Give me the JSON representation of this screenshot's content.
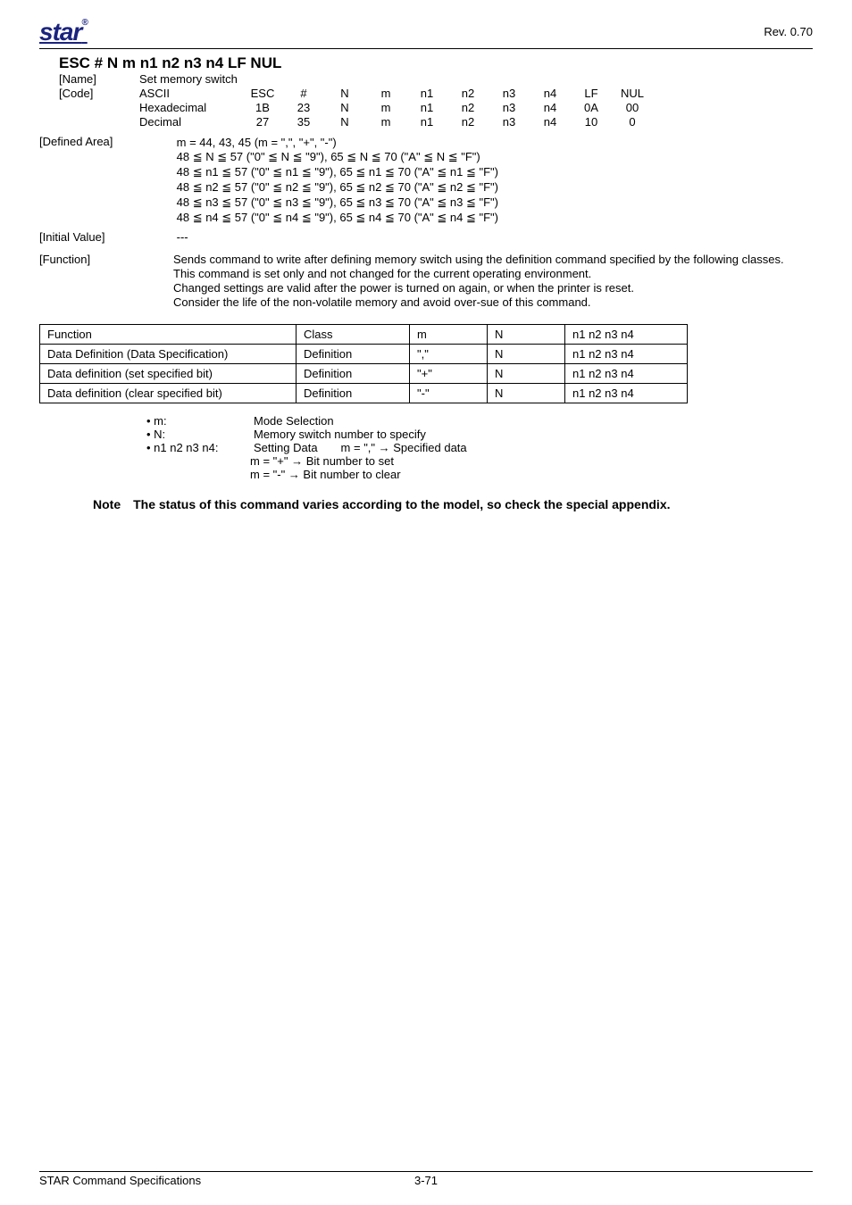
{
  "header": {
    "logo_text": "star",
    "rev": "Rev. 0.70"
  },
  "title": "ESC # N m n1 n2 n3 n4 LF NUL",
  "meta": {
    "name_label": "[Name]",
    "name_value": "Set memory switch",
    "code_label": "[Code]",
    "rows": [
      {
        "label": "ASCII",
        "cells": [
          "ESC",
          "#",
          "N",
          "m",
          "n1",
          "n2",
          "n3",
          "n4",
          "LF",
          "NUL"
        ]
      },
      {
        "label": "Hexadecimal",
        "cells": [
          "1B",
          "23",
          "N",
          "m",
          "n1",
          "n2",
          "n3",
          "n4",
          "0A",
          "00"
        ]
      },
      {
        "label": "Decimal",
        "cells": [
          "27",
          "35",
          "N",
          "m",
          "n1",
          "n2",
          "n3",
          "n4",
          "10",
          "0"
        ]
      }
    ]
  },
  "defined_area": {
    "label": "[Defined Area]",
    "lines": [
      "m = 44, 43, 45 (m = \",\", \"+\", \"-\")",
      "48 ≦ N ≦ 57 (\"0\" ≦ N ≦ \"9\"), 65 ≦ N ≦ 70 (\"A\" ≦ N ≦ \"F\")",
      "48 ≦ n1 ≦ 57 (\"0\" ≦ n1 ≦ \"9\"), 65 ≦ n1 ≦ 70 (\"A\" ≦ n1 ≦ \"F\")",
      "48 ≦ n2 ≦ 57 (\"0\" ≦ n2 ≦ \"9\"), 65 ≦ n2 ≦ 70 (\"A\" ≦ n2 ≦ \"F\")",
      "48 ≦ n3 ≦ 57 (\"0\" ≦ n3 ≦ \"9\"), 65 ≦ n3 ≦ 70 (\"A\" ≦ n3 ≦ \"F\")",
      "48 ≦ n4 ≦ 57 (\"0\" ≦ n4 ≦ \"9\"), 65 ≦ n4 ≦ 70 (\"A\" ≦ n4 ≦ \"F\")"
    ]
  },
  "initial_value": {
    "label": "[Initial Value]",
    "value": "---"
  },
  "function": {
    "label": "[Function]",
    "lines": [
      "Sends command to write after defining memory switch using the definition command specified by the following classes.",
      "This command is set only and not changed for the current operating environment.",
      "Changed settings are valid after the power is turned on again, or when the printer is reset.",
      "Consider the life of the non-volatile memory and avoid over-sue of this command."
    ]
  },
  "table": {
    "headers": [
      "Function",
      "Class",
      "m",
      "N",
      "n1 n2 n3 n4"
    ],
    "col_widths": [
      "270px",
      "110px",
      "70px",
      "70px",
      "120px"
    ],
    "rows": [
      [
        "Data Definition (Data Specification)",
        "Definition",
        "\",\"",
        "N",
        "n1 n2 n3 n4"
      ],
      [
        "Data definition (set specified bit)",
        "Definition",
        "\"+\"",
        "N",
        "n1 n2 n3 n4"
      ],
      [
        "Data definition (clear specified bit)",
        "Definition",
        "\"-\"",
        "N",
        "n1 n2 n3 n4"
      ]
    ]
  },
  "legend": {
    "items": [
      {
        "k": "• m:",
        "v": "Mode Selection"
      },
      {
        "k": "• N:",
        "v": "Memory switch number to specify"
      },
      {
        "k": "• n1 n2 n3 n4:",
        "v": "Setting Data  m = \",\" → Specified data"
      }
    ],
    "sub": [
      "m = \"+\" → Bit number to set",
      "m = \"-\" → Bit number to clear"
    ]
  },
  "note": "Note The status of this command varies according to the model, so check the special appendix.",
  "footer": {
    "left": "STAR Command Specifications",
    "page": "3-71"
  }
}
